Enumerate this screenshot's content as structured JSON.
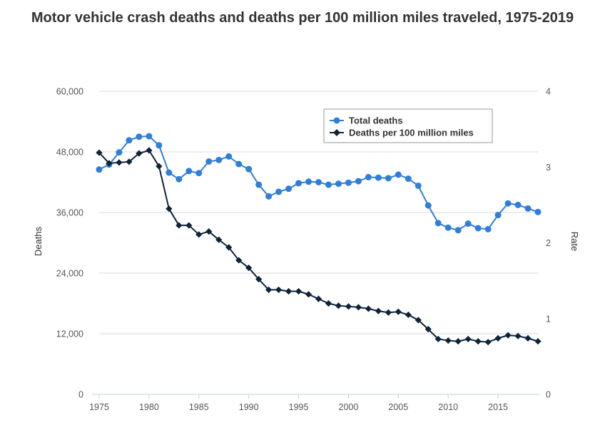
{
  "chart_data": {
    "type": "line",
    "title": "Motor vehicle crash deaths and deaths per 100 million miles traveled, 1975-2019",
    "x": [
      1975,
      1976,
      1977,
      1978,
      1979,
      1980,
      1981,
      1982,
      1983,
      1984,
      1985,
      1986,
      1987,
      1988,
      1989,
      1990,
      1991,
      1992,
      1993,
      1994,
      1995,
      1996,
      1997,
      1998,
      1999,
      2000,
      2001,
      2002,
      2003,
      2004,
      2005,
      2006,
      2007,
      2008,
      2009,
      2010,
      2011,
      2012,
      2013,
      2014,
      2015,
      2016,
      2017,
      2018,
      2019
    ],
    "xlim": [
      1975,
      2019
    ],
    "xticks": [
      "1975",
      "1980",
      "1985",
      "1990",
      "1995",
      "2000",
      "2005",
      "2010",
      "2015"
    ],
    "left_axis": {
      "label": "Deaths",
      "ylim": [
        0,
        60000
      ],
      "ticks": [
        "0",
        "12,000",
        "24,000",
        "36,000",
        "48,000",
        "60,000"
      ],
      "tick_values": [
        0,
        12000,
        24000,
        36000,
        48000,
        60000
      ]
    },
    "right_axis": {
      "label": "Rate",
      "ylim": [
        0,
        4
      ],
      "ticks": [
        "0",
        "1",
        "2",
        "3",
        "4"
      ],
      "tick_values": [
        0,
        1,
        2,
        3,
        4
      ]
    },
    "grid": true,
    "legend": {
      "placement": "top-right-inside"
    },
    "series": [
      {
        "name": "Total deaths",
        "axis": "left",
        "color": "#2f7ed8",
        "marker": "circle",
        "values": [
          44500,
          45500,
          47900,
          50300,
          51000,
          51100,
          49300,
          43900,
          42600,
          44200,
          43800,
          46100,
          46400,
          47100,
          45600,
          44600,
          41500,
          39200,
          40100,
          40700,
          41800,
          42100,
          42000,
          41500,
          41700,
          41900,
          42200,
          43000,
          42900,
          42800,
          43500,
          42700,
          41300,
          37400,
          33900,
          33000,
          32500,
          33800,
          32900,
          32700,
          35500,
          37800,
          37500,
          36800,
          36100
        ]
      },
      {
        "name": "Deaths per 100 million miles",
        "axis": "right",
        "color": "#0d233a",
        "marker": "diamond",
        "values": [
          3.19,
          3.05,
          3.06,
          3.07,
          3.18,
          3.22,
          3.01,
          2.45,
          2.23,
          2.23,
          2.11,
          2.15,
          2.04,
          1.94,
          1.77,
          1.67,
          1.52,
          1.38,
          1.38,
          1.36,
          1.36,
          1.32,
          1.26,
          1.2,
          1.17,
          1.16,
          1.15,
          1.13,
          1.1,
          1.08,
          1.09,
          1.05,
          0.98,
          0.86,
          0.73,
          0.71,
          0.7,
          0.73,
          0.7,
          0.69,
          0.74,
          0.78,
          0.77,
          0.74,
          0.7
        ]
      }
    ]
  }
}
